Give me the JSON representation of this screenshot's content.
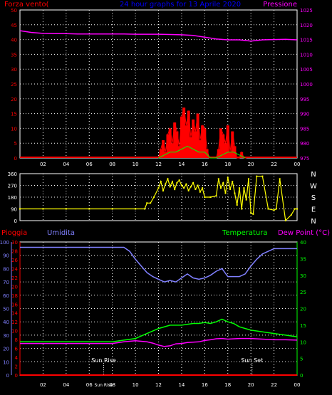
{
  "colors": {
    "background": "#000000",
    "frame": "#ffffff",
    "grid": "#ffffff",
    "wind": "#ff0000",
    "gust": "#ff0000",
    "pressure": "#ff00ff",
    "direction": "#ffff00",
    "humidity": "#8080ff",
    "temperature": "#00ff00",
    "dewpoint": "#ff00ff",
    "rain": "#ff0000",
    "title": "#0000ff",
    "axis_left_red": "#ff0000",
    "axis_right_magenta": "#ff00ff",
    "axis_green": "#00ff00",
    "axis_blue": "#8080ff"
  },
  "chart_data": [
    {
      "type": "line",
      "title": "24 hour graphs for 13 Aprile 2020",
      "ylabel_left": "Forza vento(",
      "ylabel_right": "Pressione",
      "x_tick_labels": [
        "02",
        "04",
        "06",
        "08",
        "10",
        "12",
        "14",
        "16",
        "18",
        "20",
        "22",
        "00"
      ],
      "x_range_hours": [
        0,
        24
      ],
      "ylim_left": [
        0,
        50
      ],
      "y_ticks_left": [
        0,
        5,
        10,
        15,
        20,
        25,
        30,
        35,
        40,
        45,
        50
      ],
      "ylim_right": [
        975,
        1025
      ],
      "y_ticks_right": [
        975,
        980,
        985,
        990,
        995,
        1000,
        1005,
        1010,
        1015,
        1020,
        1025
      ],
      "grid": true,
      "series": [
        {
          "key": "pressure",
          "axis": "right",
          "x": [
            0,
            1,
            2,
            3,
            4,
            5,
            6,
            7,
            8,
            9,
            10,
            11,
            12,
            13,
            14,
            15,
            16,
            17,
            18,
            19,
            20,
            21,
            22,
            23,
            24
          ],
          "values": [
            1018,
            1017.4,
            1017.1,
            1017,
            1017,
            1016.9,
            1016.9,
            1016.9,
            1016.9,
            1016.9,
            1016.8,
            1016.8,
            1016.8,
            1016.7,
            1016.6,
            1016.4,
            1015.8,
            1015.2,
            1014.9,
            1014.9,
            1014.5,
            1014.9,
            1015,
            1015.1,
            1014.9
          ]
        },
        {
          "key": "wind_gust",
          "axis": "left",
          "x": [
            12,
            12.2,
            12.4,
            12.6,
            12.8,
            13,
            13.2,
            13.4,
            13.6,
            13.8,
            14,
            14.2,
            14.4,
            14.6,
            14.8,
            15,
            15.2,
            15.4,
            15.6,
            15.8,
            16,
            16.2,
            16.4,
            16.6,
            16.8,
            17,
            17.2,
            17.4,
            17.6,
            17.8,
            18,
            18.2,
            18.4,
            18.6,
            18.8,
            19,
            19.2,
            19.4,
            19.6
          ],
          "values": [
            0,
            3,
            6,
            2,
            8,
            10,
            5,
            12,
            9,
            4,
            14,
            17,
            11,
            16,
            7,
            13,
            9,
            15,
            6,
            11,
            10,
            3,
            0,
            0,
            0,
            0,
            3,
            10,
            8,
            5,
            11,
            2,
            9,
            4,
            0,
            0,
            2,
            0,
            0
          ]
        },
        {
          "key": "wind_avg",
          "axis": "left",
          "x": [
            12,
            12.5,
            13,
            13.5,
            14,
            14.5,
            15,
            15.5,
            16,
            16.5,
            17,
            17.5,
            18,
            18.5,
            19,
            19.5
          ],
          "values": [
            0,
            1,
            2,
            2,
            3,
            4,
            3,
            2,
            2,
            0,
            0,
            1,
            2,
            2,
            1,
            0
          ]
        }
      ]
    },
    {
      "type": "scatter",
      "title": "",
      "ylabel_right": [
        "N",
        "W",
        "S",
        "E",
        "N"
      ],
      "x_range_hours": [
        0,
        24
      ],
      "ylim_left": [
        0,
        360
      ],
      "y_ticks_left": [
        0,
        90,
        180,
        270,
        360
      ],
      "grid": true,
      "series": [
        {
          "key": "direction",
          "x": [
            0,
            2,
            4,
            6,
            8,
            10,
            10.8,
            11,
            11.3,
            11.6,
            12,
            12.2,
            12.4,
            12.6,
            12.8,
            13,
            13.2,
            13.4,
            13.6,
            13.8,
            14,
            14.2,
            14.4,
            14.6,
            14.8,
            15,
            15.2,
            15.4,
            15.6,
            15.8,
            16,
            16.5,
            17,
            17.2,
            17.4,
            17.6,
            17.8,
            18,
            18.2,
            18.4,
            18.6,
            18.8,
            19,
            19.2,
            19.4,
            19.6,
            19.8,
            20,
            20.2,
            20.5,
            21,
            21.5,
            22,
            22.2,
            22.5,
            23,
            23.5,
            23.8,
            24
          ],
          "values": [
            90,
            90,
            90,
            90,
            90,
            90,
            90,
            135,
            135,
            180,
            250,
            300,
            230,
            280,
            320,
            260,
            300,
            240,
            290,
            310,
            270,
            250,
            280,
            230,
            260,
            290,
            240,
            270,
            220,
            250,
            180,
            180,
            190,
            320,
            250,
            290,
            210,
            330,
            240,
            300,
            210,
            120,
            250,
            90,
            250,
            160,
            320,
            60,
            50,
            340,
            340,
            90,
            80,
            90,
            320,
            0,
            45,
            90,
            90
          ]
        }
      ]
    },
    {
      "type": "line",
      "title": "",
      "labels": {
        "rain": "Pioggia",
        "humidity": "Umidita",
        "temperature": "Temperatura",
        "dewpoint": "Dew Point (°C)"
      },
      "x_tick_labels": [
        "02",
        "04",
        "06",
        "Sun Rise",
        "08",
        "10",
        "12",
        "14",
        "16",
        "18",
        "20",
        "22",
        "00"
      ],
      "x_range_hours": [
        0,
        24
      ],
      "y_ticks_rain": [
        0,
        2,
        4,
        6,
        8,
        10,
        12,
        14,
        16,
        18,
        20,
        22,
        24,
        26,
        28,
        30
      ],
      "ylim_rain": [
        0,
        30
      ],
      "y_ticks_humidity": [
        0,
        10,
        20,
        30,
        40,
        50,
        60,
        70,
        80,
        90,
        100
      ],
      "ylim_humidity": [
        0,
        100
      ],
      "y_ticks_temp": [
        0,
        5,
        10,
        15,
        20,
        25,
        30,
        35,
        40
      ],
      "ylim_temp": [
        0,
        40
      ],
      "annotations": [
        {
          "text": "Sun Rise",
          "x": 7.25
        },
        {
          "text": "Sun Set",
          "x": 20.1
        }
      ],
      "grid": true,
      "series": [
        {
          "key": "humidity",
          "axis": "humidity",
          "x": [
            0,
            1,
            2,
            3,
            4,
            5,
            6,
            7,
            8,
            9,
            9.5,
            10,
            10.5,
            11,
            11.5,
            12,
            12.5,
            13,
            13.5,
            14,
            14.5,
            15,
            15.5,
            16,
            16.5,
            17,
            17.5,
            18,
            18.5,
            19,
            19.5,
            20,
            20.5,
            21,
            22,
            23,
            24
          ],
          "values": [
            96,
            96,
            96,
            96,
            96,
            96,
            96,
            96,
            96,
            96,
            93,
            87,
            82,
            77,
            74,
            72,
            70,
            71,
            70,
            73,
            76,
            73,
            72,
            73,
            75,
            78,
            80,
            74,
            74,
            74,
            76,
            82,
            87,
            91,
            95,
            95,
            95
          ]
        },
        {
          "key": "temperature",
          "axis": "temp",
          "x": [
            0,
            1,
            2,
            3,
            4,
            5,
            6,
            7,
            8,
            9,
            10,
            11,
            12,
            13,
            14,
            15,
            15.5,
            16,
            16.5,
            17,
            17.5,
            18,
            18.5,
            19,
            20,
            21,
            22,
            23,
            24
          ],
          "values": [
            10,
            10,
            10,
            10,
            10,
            10,
            10,
            10,
            10,
            10.5,
            11,
            12.5,
            14,
            15,
            15,
            15.5,
            15.5,
            15.8,
            15.5,
            16,
            16.8,
            16,
            15.5,
            14.5,
            13.5,
            13,
            12.5,
            12,
            11.5
          ]
        },
        {
          "key": "dewpoint",
          "axis": "temp",
          "x": [
            0,
            1,
            2,
            3,
            4,
            5,
            6,
            7,
            8,
            9,
            10,
            11,
            11.5,
            12,
            12.5,
            13,
            13.5,
            14,
            14.5,
            15,
            15.5,
            16,
            16.5,
            17,
            17.5,
            18,
            19,
            20,
            21,
            22,
            23,
            24
          ],
          "values": [
            9.5,
            9.5,
            9.5,
            9.5,
            9.5,
            9.5,
            9.5,
            9.5,
            9.5,
            10,
            10.3,
            10,
            9.6,
            9,
            8.6,
            8.8,
            9.4,
            9.5,
            9.8,
            9.9,
            10,
            10.4,
            10.6,
            10.9,
            11,
            10.8,
            11,
            11,
            10.8,
            10.6,
            10.6,
            10.5
          ]
        },
        {
          "key": "rain",
          "axis": "rain",
          "x": [
            0,
            24
          ],
          "values": [
            0,
            0
          ]
        }
      ]
    }
  ]
}
